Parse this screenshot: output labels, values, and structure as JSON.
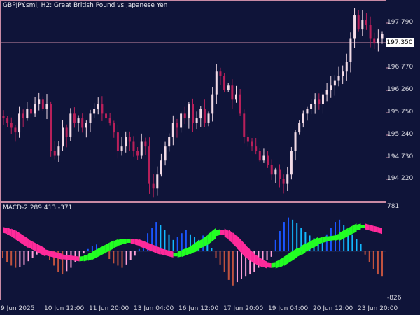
{
  "chart_title": "GBPJPY.sml, H2:  Great British Pound vs Japanese Yen",
  "current_price": "197.350",
  "price_axis": [
    "197.790",
    "197.350",
    "196.770",
    "196.260",
    "195.750",
    "195.240",
    "194.730",
    "194.220"
  ],
  "indicator_label": "MACD-2 289 413 -371",
  "indicator_axis": {
    "top": "781",
    "bottom": "-826"
  },
  "time_axis": [
    "9 Jun 2025",
    "10 Jun 12:00",
    "11 Jun 20:00",
    "13 Jun 04:00",
    "16 Jun 12:00",
    "17 Jun 20:00",
    "19 Jun 04:00",
    "20 Jun 12:00",
    "23 Jun 20:00"
  ],
  "colors": {
    "background": "#0f1439",
    "bull_candle": "#f2dbe6",
    "bear_candle": "#b8205a",
    "separator": "#c98aa5",
    "macd_pink": "#ff2a9a",
    "macd_green": "#22ff22",
    "hist_blue": "#1a55ff",
    "hist_cyan": "#12b8ff",
    "hist_salmon": "#c0523f",
    "hist_lightpink": "#ffa0d8"
  },
  "chart_data": {
    "type": "candlestick",
    "title": "GBPJPY.sml, H2:  Great British Pound vs Japanese Yen",
    "ylim": [
      193.95,
      198.2
    ],
    "close": [
      195.7,
      195.6,
      195.5,
      195.4,
      195.8,
      195.7,
      195.9,
      195.8,
      196.0,
      196.1,
      195.9,
      196.0,
      195.0,
      194.9,
      195.1,
      195.5,
      195.3,
      195.8,
      195.6,
      195.7,
      195.5,
      195.6,
      195.8,
      195.9,
      196.0,
      195.8,
      195.7,
      195.6,
      195.4,
      195.0,
      195.1,
      195.3,
      195.2,
      195.0,
      194.9,
      195.2,
      195.1,
      194.3,
      194.2,
      194.5,
      194.8,
      195.1,
      195.3,
      195.6,
      195.5,
      195.8,
      195.7,
      196.0,
      195.6,
      195.7,
      195.9,
      195.6,
      195.8,
      196.2,
      196.7,
      196.6,
      196.3,
      196.4,
      196.1,
      196.2,
      195.8,
      195.3,
      195.2,
      195.1,
      195.0,
      194.8,
      194.9,
      194.7,
      194.5,
      194.6,
      194.4,
      194.3,
      194.5,
      195.0,
      195.4,
      195.6,
      195.8,
      195.9,
      196.0,
      196.1,
      196.0,
      196.2,
      196.3,
      196.4,
      196.5,
      196.6,
      196.7,
      196.9,
      197.4,
      197.9,
      197.6,
      197.8,
      197.7,
      197.4,
      197.3,
      197.4,
      197.5
    ]
  },
  "macd_data": {
    "type": "histogram",
    "ylim": [
      -826,
      781
    ],
    "histogram": [
      -120,
      -200,
      -260,
      -300,
      -280,
      -240,
      -180,
      -120,
      -60,
      -20,
      -80,
      -160,
      -260,
      -380,
      -420,
      -360,
      -300,
      -200,
      -120,
      -40,
      40,
      90,
      120,
      70,
      -40,
      -140,
      -220,
      -260,
      -300,
      -240,
      -160,
      -80,
      40,
      180,
      320,
      420,
      520,
      460,
      380,
      300,
      200,
      260,
      320,
      380,
      300,
      250,
      200,
      280,
      150,
      60,
      -120,
      -240,
      -380,
      -520,
      -620,
      -560,
      -500,
      -460,
      -420,
      -380,
      -300,
      -240,
      -160,
      -100,
      200,
      360,
      520,
      600,
      560,
      500,
      420,
      340,
      280,
      230,
      180,
      150,
      300,
      420,
      520,
      560,
      470,
      380,
      300,
      220,
      130,
      -60,
      -200,
      -330,
      -420,
      -460
    ],
    "signal": [
      380,
      360,
      330,
      290,
      240,
      190,
      140,
      100,
      60,
      20,
      -20,
      -40,
      -60,
      -80,
      -100,
      -110,
      -120,
      -130,
      -140,
      -130,
      -110,
      -80,
      -40,
      0,
      40,
      80,
      120,
      150,
      170,
      180,
      180,
      170,
      150,
      120,
      90,
      60,
      30,
      0,
      -20,
      -40,
      -60,
      -60,
      -40,
      -10,
      20,
      60,
      110,
      150,
      200,
      260,
      320,
      340,
      330,
      290,
      230,
      160,
      80,
      0,
      -70,
      -130,
      -180,
      -220,
      -250,
      -260,
      -250,
      -220,
      -180,
      -130,
      -80,
      -30,
      10,
      60,
      100,
      140,
      180,
      200,
      220,
      230,
      240,
      260,
      300,
      340,
      380,
      420,
      440,
      440,
      420,
      400,
      380,
      360
    ]
  }
}
